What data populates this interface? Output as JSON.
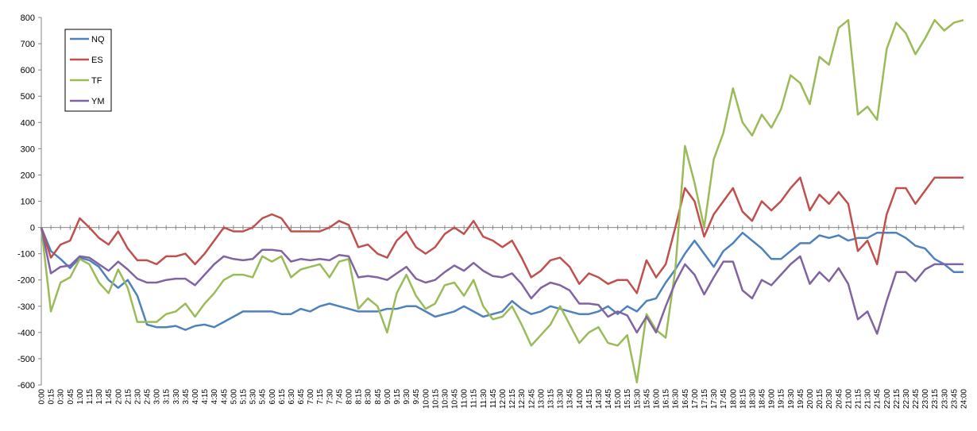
{
  "chart_data": {
    "type": "line",
    "title": "",
    "xlabel": "",
    "ylabel": "",
    "ylim": [
      -600,
      800
    ],
    "y_ticks": [
      800,
      700,
      600,
      500,
      400,
      300,
      200,
      100,
      0,
      -100,
      -200,
      -300,
      -400,
      -500,
      -600
    ],
    "grid": false,
    "legend_position": "top-left",
    "x": [
      "0:00",
      "0:15",
      "0:30",
      "0:45",
      "1:00",
      "1:15",
      "1:30",
      "1:45",
      "2:00",
      "2:15",
      "2:30",
      "2:45",
      "3:00",
      "3:15",
      "3:30",
      "3:45",
      "4:00",
      "4:15",
      "4:30",
      "4:45",
      "5:00",
      "5:15",
      "5:30",
      "5:45",
      "6:00",
      "6:15",
      "6:30",
      "6:45",
      "7:00",
      "7:15",
      "7:30",
      "7:45",
      "8:00",
      "8:15",
      "8:30",
      "8:45",
      "9:00",
      "9:15",
      "9:30",
      "9:45",
      "10:00",
      "10:15",
      "10:30",
      "10:45",
      "11:00",
      "11:15",
      "11:30",
      "11:45",
      "12:00",
      "12:15",
      "12:30",
      "12:45",
      "13:00",
      "13:15",
      "13:30",
      "13:45",
      "14:00",
      "14:15",
      "14:30",
      "14:45",
      "15:00",
      "15:15",
      "15:30",
      "15:45",
      "16:00",
      "16:15",
      "16:30",
      "16:45",
      "17:00",
      "17:15",
      "17:30",
      "17:45",
      "18:00",
      "18:15",
      "18:30",
      "18:45",
      "19:00",
      "19:15",
      "19:30",
      "19:45",
      "20:00",
      "20:15",
      "20:30",
      "20:45",
      "21:00",
      "21:15",
      "21:30",
      "21:45",
      "22:00",
      "22:15",
      "22:30",
      "22:45",
      "23:00",
      "23:15",
      "23:30",
      "23:45",
      "24:00"
    ],
    "series": [
      {
        "name": "NQ",
        "color": "#4F81BD",
        "values": [
          0,
          -90,
          -120,
          -155,
          -115,
          -125,
          -150,
          -200,
          -230,
          -200,
          -260,
          -370,
          -380,
          -380,
          -375,
          -390,
          -375,
          -370,
          -380,
          -360,
          -340,
          -320,
          -320,
          -320,
          -320,
          -330,
          -330,
          -310,
          -320,
          -300,
          -290,
          -300,
          -310,
          -320,
          -320,
          -320,
          -310,
          -310,
          -300,
          -300,
          -320,
          -340,
          -330,
          -320,
          -300,
          -320,
          -340,
          -330,
          -320,
          -280,
          -310,
          -330,
          -320,
          -300,
          -310,
          -320,
          -330,
          -330,
          -320,
          -300,
          -330,
          -300,
          -320,
          -280,
          -270,
          -210,
          -160,
          -100,
          -50,
          -100,
          -150,
          -90,
          -60,
          -20,
          -50,
          -80,
          -120,
          -120,
          -90,
          -60,
          -60,
          -30,
          -40,
          -30,
          -50,
          -40,
          -40,
          -20,
          -20,
          -20,
          -40,
          -70,
          -80,
          -120,
          -140,
          -170,
          -170
        ]
      },
      {
        "name": "ES",
        "color": "#C0504D",
        "values": [
          0,
          -115,
          -65,
          -50,
          35,
          0,
          -40,
          -65,
          -15,
          -80,
          -125,
          -125,
          -140,
          -110,
          -110,
          -100,
          -140,
          -100,
          -50,
          0,
          -15,
          -15,
          0,
          35,
          50,
          35,
          -15,
          -15,
          -15,
          -15,
          0,
          25,
          10,
          -75,
          -65,
          -100,
          -115,
          -50,
          -15,
          -75,
          -100,
          -75,
          -25,
          0,
          -25,
          25,
          -35,
          -50,
          -75,
          -50,
          -115,
          -190,
          -165,
          -125,
          -115,
          -150,
          -215,
          -175,
          -190,
          -215,
          -200,
          -200,
          -250,
          -125,
          -190,
          -140,
          0,
          150,
          100,
          -35,
          50,
          100,
          150,
          60,
          25,
          100,
          65,
          100,
          150,
          190,
          65,
          125,
          90,
          135,
          90,
          -90,
          -50,
          -140,
          50,
          150,
          150,
          90,
          140,
          190,
          190,
          190,
          190
        ]
      },
      {
        "name": "TF",
        "color": "#9BBB59",
        "values": [
          0,
          -320,
          -210,
          -190,
          -120,
          -140,
          -210,
          -250,
          -160,
          -230,
          -360,
          -360,
          -360,
          -330,
          -320,
          -290,
          -340,
          -290,
          -250,
          -200,
          -180,
          -180,
          -190,
          -110,
          -130,
          -110,
          -190,
          -160,
          -150,
          -140,
          -190,
          -130,
          -120,
          -310,
          -270,
          -300,
          -400,
          -250,
          -180,
          -260,
          -310,
          -290,
          -220,
          -210,
          -260,
          -200,
          -300,
          -350,
          -340,
          -300,
          -370,
          -450,
          -410,
          -370,
          -300,
          -370,
          -440,
          -400,
          -380,
          -440,
          -450,
          -410,
          -590,
          -330,
          -390,
          -420,
          -160,
          310,
          170,
          0,
          260,
          360,
          530,
          400,
          350,
          430,
          380,
          450,
          580,
          550,
          470,
          650,
          620,
          760,
          790,
          430,
          460,
          410,
          680,
          780,
          740,
          660,
          720,
          790,
          750,
          780,
          790
        ]
      },
      {
        "name": "YM",
        "color": "#8064A2",
        "values": [
          0,
          -175,
          -150,
          -145,
          -110,
          -115,
          -140,
          -165,
          -130,
          -160,
          -195,
          -210,
          -210,
          -200,
          -195,
          -195,
          -220,
          -180,
          -140,
          -110,
          -120,
          -125,
          -120,
          -85,
          -85,
          -90,
          -130,
          -120,
          -125,
          -120,
          -125,
          -105,
          -110,
          -190,
          -185,
          -190,
          -200,
          -175,
          -150,
          -195,
          -210,
          -200,
          -170,
          -145,
          -165,
          -135,
          -165,
          -185,
          -190,
          -175,
          -215,
          -270,
          -230,
          -210,
          -220,
          -240,
          -290,
          -290,
          -295,
          -340,
          -320,
          -335,
          -400,
          -340,
          -400,
          -300,
          -210,
          -140,
          -180,
          -255,
          -190,
          -130,
          -130,
          -240,
          -270,
          -200,
          -220,
          -180,
          -140,
          -110,
          -215,
          -170,
          -205,
          -155,
          -215,
          -350,
          -320,
          -405,
          -280,
          -170,
          -170,
          -205,
          -160,
          -140,
          -140,
          -140,
          -140
        ]
      }
    ]
  }
}
